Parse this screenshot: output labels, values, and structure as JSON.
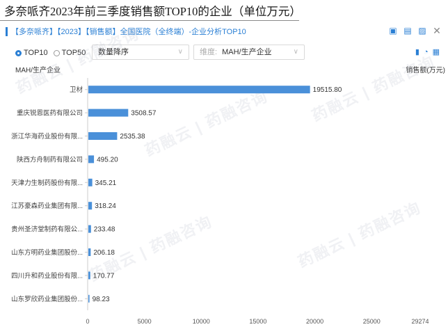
{
  "header": {
    "title": "多奈哌齐2023年前三季度销售额TOP10的企业（单位万元）",
    "panel_title": "【多奈哌齐】【2023】【销售额】全国医院（全终端）-企业分析TOP10",
    "icons": [
      "export-excel-icon",
      "export-ppt-icon",
      "image-icon",
      "close-icon"
    ]
  },
  "controls": {
    "radio_top10": "TOP10",
    "radio_top50": "TOP50",
    "sort_select": "数量降序",
    "dim_label": "维度:",
    "dim_select": "MAH/生产企业",
    "view_icons": [
      "bar-chart-icon",
      "pie-chart-icon",
      "table-icon"
    ]
  },
  "watermark": "药融云 | 药融咨询",
  "colors": {
    "bar": "#4a90d9",
    "accent": "#2a7fd4"
  },
  "chart_data": {
    "type": "bar",
    "orientation": "horizontal",
    "ylabel": "MAH/生产企业",
    "xlabel": "销售额(万元)",
    "categories": [
      "卫材",
      "重庆锐恩医药有限公司",
      "浙江华海药业股份有限...",
      "陕西方舟制药有限公司",
      "天津力生制药股份有限...",
      "江苏豪森药业集团有限...",
      "贵州圣济堂制药有限公...",
      "山东方明药业集团股份...",
      "四川升和药业股份有限...",
      "山东罗欣药业集团股份..."
    ],
    "values": [
      19515.8,
      3508.57,
      2535.38,
      495.2,
      345.21,
      318.24,
      233.48,
      206.18,
      170.77,
      98.23
    ],
    "value_labels": [
      "19515.80",
      "3508.57",
      "2535.38",
      "495.20",
      "345.21",
      "318.24",
      "233.48",
      "206.18",
      "170.77",
      "98.23"
    ],
    "xlim": [
      0,
      29274
    ],
    "xticks": [
      0,
      5000,
      10000,
      15000,
      20000,
      25000,
      29274
    ],
    "grid": false
  }
}
